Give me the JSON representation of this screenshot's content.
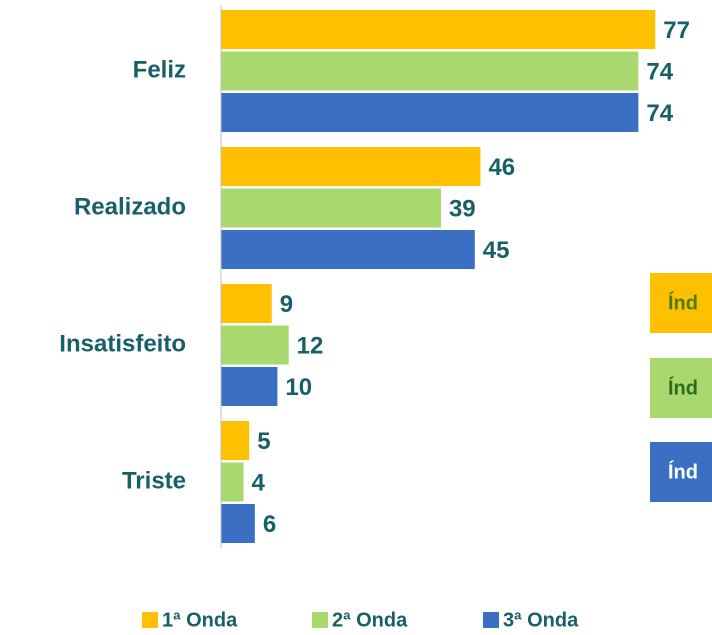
{
  "chart_data": {
    "type": "hbar",
    "categories": [
      "Feliz",
      "Realizado",
      "Insatisfeito",
      "Triste"
    ],
    "series": [
      {
        "name": "1ª Onda",
        "color": "#FFC000",
        "values": [
          77,
          46,
          9,
          5
        ]
      },
      {
        "name": "2ª Onda",
        "color": "#A9D86E",
        "values": [
          74,
          39,
          12,
          4
        ]
      },
      {
        "name": "3ª Onda",
        "color": "#3A6FC4",
        "values": [
          74,
          45,
          10,
          6
        ]
      }
    ],
    "annotations": [
      {
        "text": "Índ",
        "color": "#FFC000",
        "text_color": "#4E7A12"
      },
      {
        "text": "Índ",
        "color": "#A9D86E",
        "text_color": "#2E6B1E"
      },
      {
        "text": "Índ",
        "color": "#3A6FC4",
        "text_color": "#FFFFFF"
      }
    ],
    "legend": "bottom"
  }
}
